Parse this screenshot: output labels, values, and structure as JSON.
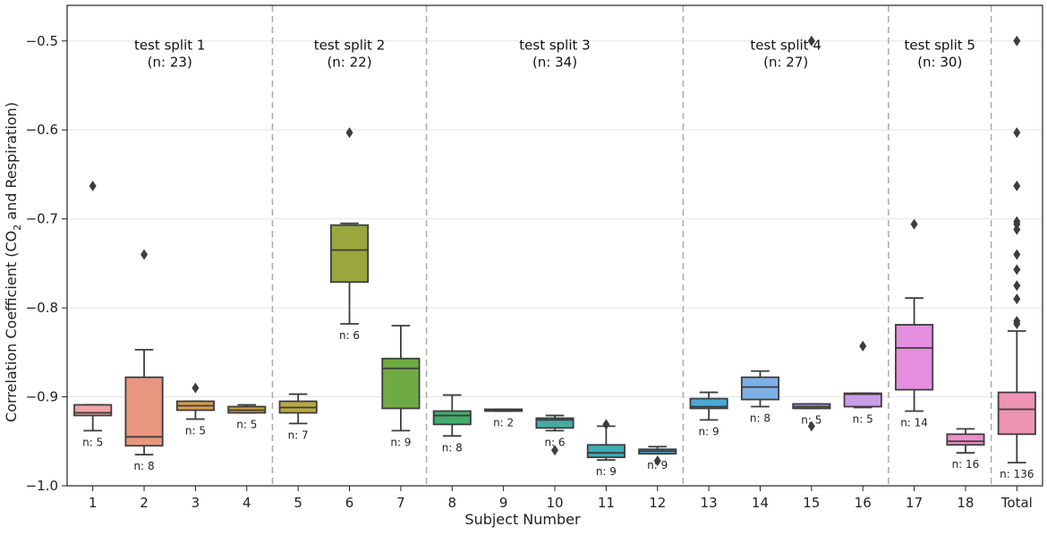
{
  "chart_data": {
    "type": "box",
    "xlabel": "Subject Number",
    "ylabel_prefix": "Correlation Coefficient (CO",
    "ylabel_sub": "2",
    "ylabel_suffix": " and Respiration)",
    "ylim": [
      -1.0,
      -0.46
    ],
    "yticks": [
      -1.0,
      -0.9,
      -0.8,
      -0.7,
      -0.6,
      -0.5
    ],
    "ytick_labels": [
      "−1.0",
      "−0.9",
      "−0.8",
      "−0.7",
      "−0.6",
      "−0.5"
    ],
    "grid": "horizontal",
    "categories": [
      "1",
      "2",
      "3",
      "4",
      "5",
      "6",
      "7",
      "8",
      "9",
      "10",
      "11",
      "12",
      "13",
      "14",
      "15",
      "16",
      "17",
      "18",
      "Total"
    ],
    "boxes": [
      {
        "category": "1",
        "color": "#f3a3a6",
        "whislo": -0.938,
        "q1": -0.921,
        "med": -0.918,
        "q3": -0.909,
        "whishi": -0.909,
        "fliers": [
          -0.663
        ],
        "n_label": "n: 5"
      },
      {
        "category": "2",
        "color": "#e8967f",
        "whislo": -0.965,
        "q1": -0.955,
        "med": -0.945,
        "q3": -0.878,
        "whishi": -0.847,
        "fliers": [
          -0.74
        ],
        "n_label": "n: 8"
      },
      {
        "category": "3",
        "color": "#db9b52",
        "whislo": -0.925,
        "q1": -0.915,
        "med": -0.91,
        "q3": -0.905,
        "whishi": -0.905,
        "fliers": [
          -0.89
        ],
        "n_label": "n: 5"
      },
      {
        "category": "4",
        "color": "#c5a045",
        "whislo": -0.918,
        "q1": -0.918,
        "med": -0.915,
        "q3": -0.911,
        "whishi": -0.909,
        "fliers": [],
        "n_label": "n: 5"
      },
      {
        "category": "5",
        "color": "#b9a944",
        "whislo": -0.93,
        "q1": -0.918,
        "med": -0.912,
        "q3": -0.905,
        "whishi": -0.897,
        "fliers": [],
        "n_label": "n: 7"
      },
      {
        "category": "6",
        "color": "#9aa73f",
        "whislo": -0.818,
        "q1": -0.771,
        "med": -0.735,
        "q3": -0.707,
        "whishi": -0.705,
        "fliers": [
          -0.603
        ],
        "n_label": "n: 6"
      },
      {
        "category": "7",
        "color": "#6faa42",
        "whislo": -0.938,
        "q1": -0.913,
        "med": -0.868,
        "q3": -0.857,
        "whishi": -0.82,
        "fliers": [],
        "n_label": "n: 9"
      },
      {
        "category": "8",
        "color": "#45ac6e",
        "whislo": -0.944,
        "q1": -0.931,
        "med": -0.921,
        "q3": -0.916,
        "whishi": -0.898,
        "fliers": [],
        "n_label": "n: 8"
      },
      {
        "category": "9",
        "color": "#45ab92",
        "whislo": -0.916,
        "q1": -0.916,
        "med": -0.915,
        "q3": -0.914,
        "whishi": -0.914,
        "fliers": [],
        "n_label": "n: 2"
      },
      {
        "category": "10",
        "color": "#45aca4",
        "whislo": -0.938,
        "q1": -0.935,
        "med": -0.926,
        "q3": -0.924,
        "whishi": -0.921,
        "fliers": [
          -0.96
        ],
        "n_label": "n: 6"
      },
      {
        "category": "11",
        "color": "#3eadb5",
        "whislo": -0.971,
        "q1": -0.968,
        "med": -0.963,
        "q3": -0.954,
        "whishi": -0.933,
        "fliers": [
          -0.931
        ],
        "n_label": "n: 9"
      },
      {
        "category": "12",
        "color": "#43aac3",
        "whislo": -0.964,
        "q1": -0.964,
        "med": -0.961,
        "q3": -0.959,
        "whishi": -0.956,
        "fliers": [
          -0.972
        ],
        "n_label": "n: 9"
      },
      {
        "category": "13",
        "color": "#4aa9d8",
        "whislo": -0.926,
        "q1": -0.913,
        "med": -0.911,
        "q3": -0.902,
        "whishi": -0.895,
        "fliers": [],
        "n_label": "n: 9"
      },
      {
        "category": "14",
        "color": "#7fb0e8",
        "whislo": -0.911,
        "q1": -0.903,
        "med": -0.889,
        "q3": -0.878,
        "whishi": -0.871,
        "fliers": [],
        "n_label": "n: 8"
      },
      {
        "category": "15",
        "color": "#9ea3ea",
        "whislo": -0.913,
        "q1": -0.913,
        "med": -0.911,
        "q3": -0.908,
        "whishi": -0.908,
        "fliers": [
          -0.5,
          -0.933
        ],
        "n_label": "n: 5"
      },
      {
        "category": "16",
        "color": "#c99ee8",
        "whislo": -0.912,
        "q1": -0.911,
        "med": -0.897,
        "q3": -0.896,
        "whishi": -0.896,
        "fliers": [
          -0.843
        ],
        "n_label": "n: 5"
      },
      {
        "category": "17",
        "color": "#e58ee0",
        "whislo": -0.916,
        "q1": -0.892,
        "med": -0.845,
        "q3": -0.819,
        "whishi": -0.789,
        "fliers": [
          -0.706
        ],
        "n_label": "n: 14"
      },
      {
        "category": "18",
        "color": "#ec8fcc",
        "whislo": -0.963,
        "q1": -0.954,
        "med": -0.95,
        "q3": -0.942,
        "whishi": -0.936,
        "fliers": [],
        "n_label": "n: 16"
      },
      {
        "category": "Total",
        "color": "#ee93b4",
        "whislo": -0.974,
        "q1": -0.942,
        "med": -0.914,
        "q3": -0.895,
        "whishi": -0.826,
        "fliers": [
          -0.5,
          -0.603,
          -0.663,
          -0.703,
          -0.706,
          -0.712,
          -0.74,
          -0.757,
          -0.775,
          -0.79,
          -0.815,
          -0.818
        ],
        "n_label": "n: 136"
      }
    ],
    "dividers_after_index": [
      3,
      6,
      11,
      15,
      17
    ],
    "splits": [
      {
        "title": "test split 1",
        "count": "(n: 23)",
        "from": 0,
        "to": 3
      },
      {
        "title": "test split 2",
        "count": "(n: 22)",
        "from": 4,
        "to": 6
      },
      {
        "title": "test split 3",
        "count": "(n: 34)",
        "from": 7,
        "to": 11
      },
      {
        "title": "test split 4",
        "count": "(n: 27)",
        "from": 12,
        "to": 15
      },
      {
        "title": "test split 5",
        "count": "(n: 30)",
        "from": 16,
        "to": 17
      }
    ],
    "split_label_value": -0.52,
    "colors": {
      "line": "#3d3d3d",
      "grid": "#e6e6e6",
      "divider": "#aaaaaa",
      "axis": "#222222"
    }
  }
}
